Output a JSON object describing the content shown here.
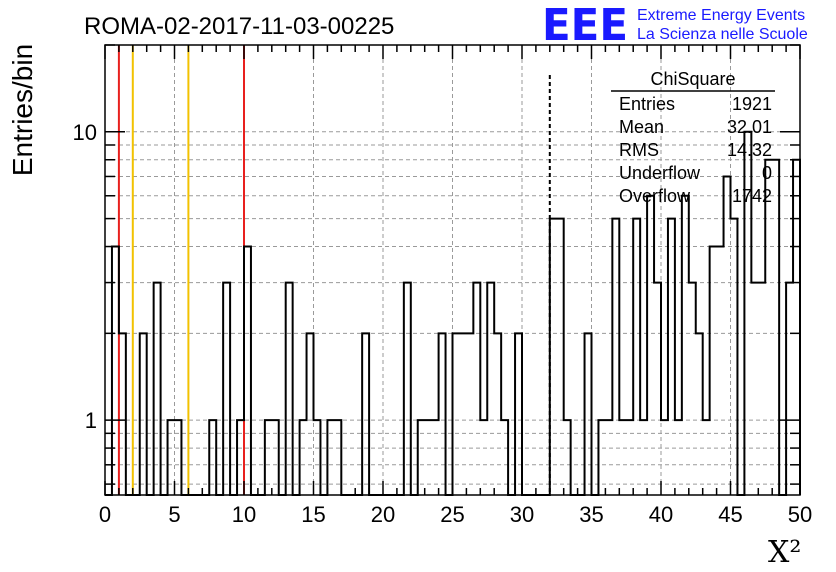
{
  "chart_data": {
    "type": "histogram",
    "title": "ROMA-02-2017-11-03-00225",
    "xlabel": "X²",
    "ylabel": "Entries/bin",
    "xlim": [
      0,
      50
    ],
    "ylim": [
      0.55,
      20
    ],
    "yscale": "log",
    "grid": true,
    "bin_width": 0.5,
    "x_ticks": [
      0,
      5,
      10,
      15,
      20,
      25,
      30,
      35,
      40,
      45,
      50
    ],
    "y_tick_labels": [
      1,
      10
    ],
    "counts": [
      0,
      4,
      2,
      0,
      0,
      2,
      0,
      3,
      0,
      1,
      1,
      0,
      0,
      0,
      0,
      1,
      0,
      3,
      0,
      1,
      4,
      0,
      0,
      1,
      1,
      0,
      3,
      0,
      1,
      2,
      1,
      0,
      1,
      1,
      0,
      0,
      0,
      2,
      0,
      0,
      0,
      0,
      0,
      3,
      0,
      1,
      1,
      1,
      2,
      0,
      2,
      2,
      2,
      3,
      1,
      3,
      2,
      1,
      0,
      2,
      0,
      0,
      0,
      0,
      5,
      5,
      1,
      0,
      0,
      2,
      0,
      1,
      1,
      5,
      1,
      1,
      5,
      1,
      6,
      3,
      1,
      5,
      1,
      6,
      3,
      2,
      1,
      4,
      4,
      7,
      5,
      0,
      10,
      3,
      3,
      8,
      8,
      0,
      3,
      8
    ],
    "vertical_lines": [
      {
        "x": 1,
        "color": "#e8201e",
        "style": "solid"
      },
      {
        "x": 2,
        "color": "#f2c200",
        "style": "solid"
      },
      {
        "x": 6,
        "color": "#f2c200",
        "style": "solid"
      },
      {
        "x": 10,
        "color": "#e8201e",
        "style": "solid"
      },
      {
        "x": 32,
        "color": "#000000",
        "style": "dashed"
      }
    ],
    "stats": {
      "title": "ChiSquare",
      "rows": [
        {
          "label": "Entries",
          "value": "1921"
        },
        {
          "label": "Mean",
          "value": "32.01"
        },
        {
          "label": "RMS",
          "value": "14.32"
        },
        {
          "label": "Underflow",
          "value": "0"
        },
        {
          "label": "Overflow",
          "value": "1742"
        }
      ]
    }
  },
  "logo": {
    "mark": "EEE",
    "line1": "Extreme Energy Events",
    "line2": "La Scienza nelle Scuole"
  },
  "colors": {
    "logo": "#1a1aff",
    "grid": "#9a9a9a"
  }
}
